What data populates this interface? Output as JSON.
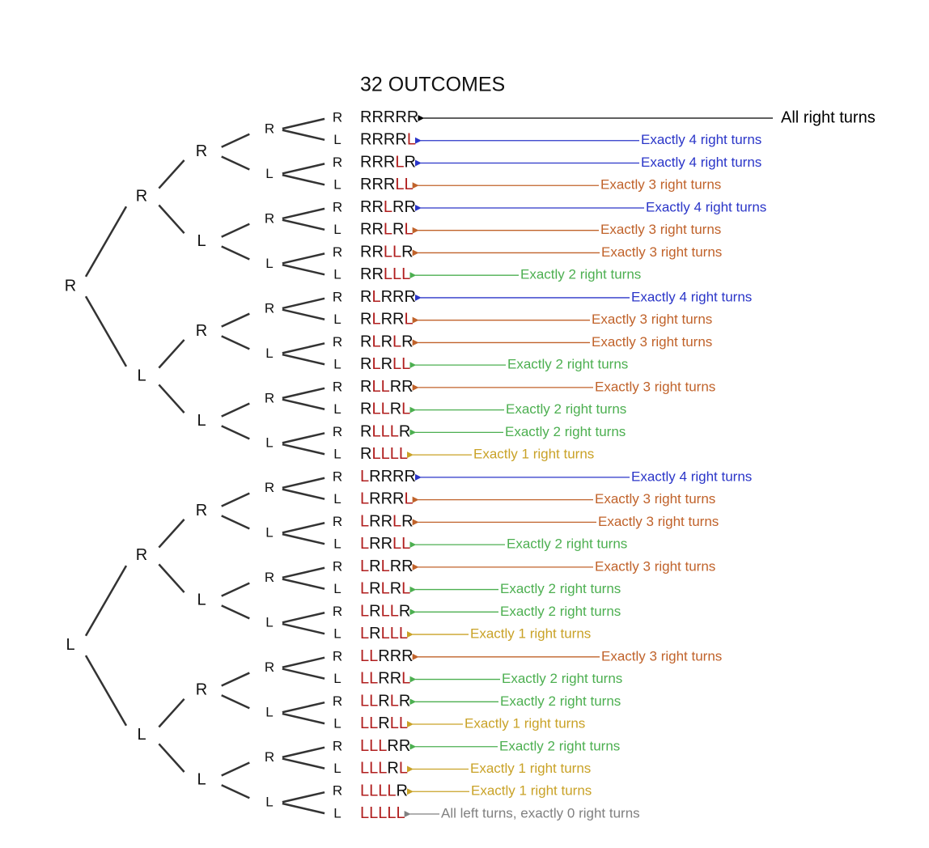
{
  "title": "32 OUTCOMES",
  "tree": {
    "levels": [
      [
        "R",
        "L"
      ],
      [
        "R",
        "L",
        "R",
        "L"
      ],
      [
        "R",
        "L",
        "R",
        "L",
        "R",
        "L",
        "R",
        "L"
      ],
      [
        "R",
        "L",
        "R",
        "L",
        "R",
        "L",
        "R",
        "L",
        "R",
        "L",
        "R",
        "L",
        "R",
        "L",
        "R",
        "L"
      ],
      [
        "R",
        "L",
        "R",
        "L",
        "R",
        "L",
        "R",
        "L",
        "R",
        "L",
        "R",
        "L",
        "R",
        "L",
        "R",
        "L",
        "R",
        "L",
        "R",
        "L",
        "R",
        "L",
        "R",
        "L",
        "R",
        "L",
        "R",
        "L",
        "R",
        "L",
        "R",
        "L"
      ]
    ]
  },
  "letter_colors": {
    "R": "#111111",
    "L": "#b01e1e"
  },
  "outcomes": [
    {
      "text": "RRRRR",
      "annotation": "All right turns",
      "color": "#000000"
    },
    {
      "text": "RRRRL",
      "annotation": "Exactly 4 right turns",
      "color": "#2a35c8"
    },
    {
      "text": "RRRLR",
      "annotation": "Exactly 4 right turns",
      "color": "#2a35c8"
    },
    {
      "text": "RRRLL",
      "annotation": "Exactly 3 right turns",
      "color": "#c0622a"
    },
    {
      "text": "RRLRR",
      "annotation": "Exactly 4 right turns",
      "color": "#2a35c8"
    },
    {
      "text": "RRLRL",
      "annotation": "Exactly 3 right turns",
      "color": "#c0622a"
    },
    {
      "text": "RRLLR",
      "annotation": "Exactly 3 right turns",
      "color": "#c0622a"
    },
    {
      "text": "RRLLL",
      "annotation": "Exactly 2 right turns",
      "color": "#4caf50"
    },
    {
      "text": "RLRRR",
      "annotation": "Exactly 4 right turns",
      "color": "#2a35c8"
    },
    {
      "text": "RLRRL",
      "annotation": "Exactly 3 right turns",
      "color": "#c0622a"
    },
    {
      "text": "RLRLR",
      "annotation": "Exactly 3 right turns",
      "color": "#c0622a"
    },
    {
      "text": "RLRLL",
      "annotation": "Exactly 2 right turns",
      "color": "#4caf50"
    },
    {
      "text": "RLLRR",
      "annotation": "Exactly 3 right turns",
      "color": "#c0622a"
    },
    {
      "text": "RLLRL",
      "annotation": "Exactly 2 right turns",
      "color": "#4caf50"
    },
    {
      "text": "RLLLR",
      "annotation": "Exactly 2 right turns",
      "color": "#4caf50"
    },
    {
      "text": "RLLLL",
      "annotation": "Exactly 1 right turns",
      "color": "#c9a227"
    },
    {
      "text": "LRRRR",
      "annotation": "Exactly 4 right turns",
      "color": "#2a35c8"
    },
    {
      "text": "LRRRL",
      "annotation": "Exactly 3 right turns",
      "color": "#c0622a"
    },
    {
      "text": "LRRLR",
      "annotation": "Exactly 3 right turns",
      "color": "#c0622a"
    },
    {
      "text": "LRRLL",
      "annotation": "Exactly 2 right turns",
      "color": "#4caf50"
    },
    {
      "text": "LRLRR",
      "annotation": "Exactly 3 right turns",
      "color": "#c0622a"
    },
    {
      "text": "LRLRL",
      "annotation": "Exactly 2 right turns",
      "color": "#4caf50"
    },
    {
      "text": "LRLLR",
      "annotation": "Exactly 2 right turns",
      "color": "#4caf50"
    },
    {
      "text": "LRLLL",
      "annotation": "Exactly 1 right turns",
      "color": "#c9a227"
    },
    {
      "text": "LLRRR",
      "annotation": "Exactly 3 right turns",
      "color": "#c0622a"
    },
    {
      "text": "LLRRL",
      "annotation": "Exactly 2 right turns",
      "color": "#4caf50"
    },
    {
      "text": "LLRLR",
      "annotation": "Exactly 2 right turns",
      "color": "#4caf50"
    },
    {
      "text": "LLRLL",
      "annotation": "Exactly 1 right turns",
      "color": "#c9a227"
    },
    {
      "text": "LLLRR",
      "annotation": "Exactly 2 right turns",
      "color": "#4caf50"
    },
    {
      "text": "LLLRL",
      "annotation": "Exactly 1 right turns",
      "color": "#c9a227"
    },
    {
      "text": "LLLLR",
      "annotation": "Exactly 1 right turns",
      "color": "#c9a227"
    },
    {
      "text": "LLLLL",
      "annotation": "All left turns, exactly 0 right turns",
      "color": "#808080"
    }
  ]
}
